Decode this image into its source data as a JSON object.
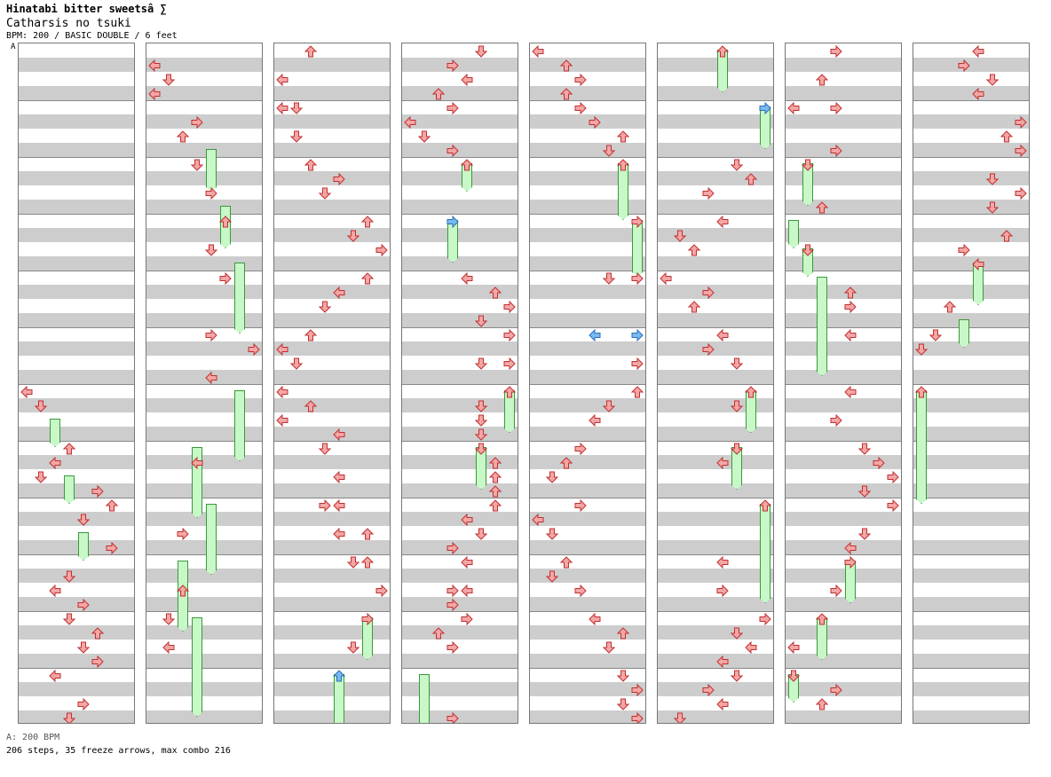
{
  "header": {
    "title": "Hinatabi bitter sweetsâ ∑",
    "subtitle": "Catharsis no tsuki",
    "info": "BPM: 200 / BASIC DOUBLE / 6 feet"
  },
  "bpm_marker": "A",
  "footer": {
    "bpm_line": "A: 200 BPM",
    "stats": "206 steps, 35 freeze arrows, max combo 216"
  },
  "colors": {
    "arrow_red": "#f4a6a6",
    "arrow_blue": "#7ab8f0",
    "freeze_green": "#c8f7c8"
  },
  "chart": {
    "measures_per_column": 12,
    "columns": [
      {
        "arrows": [
          [
            24,
            0,
            "L"
          ],
          [
            25,
            1,
            "D"
          ],
          [
            28,
            3,
            "U"
          ],
          [
            29,
            2,
            "L"
          ],
          [
            30,
            1,
            "D"
          ],
          [
            31,
            5,
            "R"
          ],
          [
            32,
            6,
            "U"
          ],
          [
            33,
            4,
            "D"
          ],
          [
            35,
            6,
            "R"
          ],
          [
            37,
            3,
            "D"
          ],
          [
            38,
            2,
            "L"
          ],
          [
            39,
            4,
            "R"
          ],
          [
            40,
            3,
            "D"
          ],
          [
            41,
            5,
            "U"
          ],
          [
            42,
            4,
            "D"
          ],
          [
            43,
            5,
            "R"
          ],
          [
            44,
            2,
            "L"
          ],
          [
            46,
            4,
            "R"
          ],
          [
            47,
            3,
            "D"
          ]
        ],
        "holds": [
          [
            26,
            2,
            2
          ],
          [
            30,
            3,
            2
          ],
          [
            34,
            4,
            2
          ]
        ]
      },
      {
        "arrows": [
          [
            1,
            0,
            "L"
          ],
          [
            2,
            1,
            "D"
          ],
          [
            3,
            0,
            "L"
          ],
          [
            5,
            3,
            "R"
          ],
          [
            6,
            2,
            "U"
          ],
          [
            8,
            3,
            "D"
          ],
          [
            10,
            4,
            "R"
          ],
          [
            12,
            5,
            "U"
          ],
          [
            14,
            4,
            "D"
          ],
          [
            16,
            5,
            "R"
          ],
          [
            20,
            4,
            "R"
          ],
          [
            21,
            7,
            "R"
          ],
          [
            23,
            4,
            "L"
          ],
          [
            29,
            3,
            "L"
          ],
          [
            34,
            2,
            "R"
          ],
          [
            38,
            2,
            "U"
          ],
          [
            40,
            1,
            "D"
          ],
          [
            42,
            1,
            "L"
          ]
        ],
        "holds": [
          [
            7,
            4,
            3
          ],
          [
            11,
            5,
            3
          ],
          [
            15,
            6,
            5
          ],
          [
            24,
            6,
            5
          ],
          [
            28,
            3,
            5
          ],
          [
            32,
            4,
            5
          ],
          [
            36,
            2,
            5
          ],
          [
            40,
            3,
            7
          ]
        ]
      },
      {
        "arrows": [
          [
            0,
            2,
            "U"
          ],
          [
            2,
            0,
            "L"
          ],
          [
            4,
            0,
            "L"
          ],
          [
            4,
            1,
            "D"
          ],
          [
            6,
            1,
            "D"
          ],
          [
            8,
            2,
            "U"
          ],
          [
            9,
            4,
            "R"
          ],
          [
            10,
            3,
            "D"
          ],
          [
            12,
            6,
            "U"
          ],
          [
            13,
            5,
            "D"
          ],
          [
            14,
            7,
            "R"
          ],
          [
            16,
            6,
            "U"
          ],
          [
            17,
            4,
            "L"
          ],
          [
            18,
            3,
            "D"
          ],
          [
            20,
            2,
            "U"
          ],
          [
            21,
            0,
            "L"
          ],
          [
            22,
            1,
            "D"
          ],
          [
            24,
            0,
            "L"
          ],
          [
            25,
            2,
            "U"
          ],
          [
            26,
            0,
            "L"
          ],
          [
            27,
            4,
            "L"
          ],
          [
            28,
            3,
            "D"
          ],
          [
            30,
            4,
            "L"
          ],
          [
            32,
            3,
            "R"
          ],
          [
            32,
            4,
            "L"
          ],
          [
            34,
            4,
            "L"
          ],
          [
            34,
            6,
            "U"
          ],
          [
            36,
            5,
            "D"
          ],
          [
            36,
            6,
            "U"
          ],
          [
            38,
            7,
            "R"
          ],
          [
            40,
            6,
            "R"
          ],
          [
            42,
            5,
            "D"
          ]
        ],
        "holds": [
          [
            40,
            6,
            3
          ]
        ],
        "blue_arrows": [
          [
            44,
            4,
            "U"
          ]
        ],
        "blue_holds": [
          [
            44,
            4,
            4
          ]
        ]
      },
      {
        "arrows": [
          [
            0,
            5,
            "D"
          ],
          [
            1,
            3,
            "R"
          ],
          [
            2,
            4,
            "L"
          ],
          [
            3,
            2,
            "U"
          ],
          [
            4,
            3,
            "R"
          ],
          [
            5,
            0,
            "L"
          ],
          [
            6,
            1,
            "D"
          ],
          [
            7,
            3,
            "R"
          ],
          [
            8,
            4,
            "U"
          ],
          [
            16,
            4,
            "L"
          ],
          [
            17,
            6,
            "U"
          ],
          [
            18,
            7,
            "R"
          ],
          [
            19,
            5,
            "D"
          ],
          [
            20,
            7,
            "R"
          ],
          [
            22,
            5,
            "D"
          ],
          [
            22,
            7,
            "R"
          ],
          [
            24,
            7,
            "U"
          ],
          [
            25,
            5,
            "D"
          ],
          [
            26,
            5,
            "D"
          ],
          [
            27,
            5,
            "D"
          ],
          [
            28,
            5,
            "D"
          ],
          [
            29,
            6,
            "U"
          ],
          [
            30,
            6,
            "U"
          ],
          [
            31,
            6,
            "U"
          ],
          [
            32,
            6,
            "U"
          ],
          [
            33,
            4,
            "L"
          ],
          [
            34,
            5,
            "D"
          ],
          [
            35,
            3,
            "R"
          ],
          [
            36,
            4,
            "L"
          ],
          [
            38,
            3,
            "R"
          ],
          [
            38,
            4,
            "L"
          ],
          [
            39,
            3,
            "R"
          ],
          [
            40,
            4,
            "R"
          ],
          [
            41,
            2,
            "U"
          ],
          [
            42,
            3,
            "R"
          ],
          [
            47,
            3,
            "R"
          ]
        ],
        "holds": [
          [
            8,
            4,
            2
          ],
          [
            24,
            7,
            3
          ],
          [
            28,
            5,
            3
          ],
          [
            44,
            1,
            4
          ]
        ],
        "blue_arrows": [
          [
            12,
            3,
            "R"
          ]
        ],
        "blue_holds": [
          [
            12,
            3,
            3
          ]
        ]
      },
      {
        "arrows": [
          [
            0,
            0,
            "L"
          ],
          [
            1,
            2,
            "U"
          ],
          [
            2,
            3,
            "R"
          ],
          [
            3,
            2,
            "U"
          ],
          [
            4,
            3,
            "R"
          ],
          [
            5,
            4,
            "R"
          ],
          [
            6,
            6,
            "U"
          ],
          [
            7,
            5,
            "D"
          ],
          [
            8,
            6,
            "U"
          ],
          [
            12,
            7,
            "R"
          ],
          [
            16,
            5,
            "D"
          ],
          [
            16,
            7,
            "R"
          ],
          [
            22,
            7,
            "R"
          ],
          [
            24,
            7,
            "U"
          ],
          [
            25,
            5,
            "D"
          ],
          [
            26,
            4,
            "L"
          ],
          [
            28,
            3,
            "R"
          ],
          [
            29,
            2,
            "U"
          ],
          [
            30,
            1,
            "D"
          ],
          [
            32,
            3,
            "R"
          ],
          [
            33,
            0,
            "L"
          ],
          [
            34,
            1,
            "D"
          ],
          [
            36,
            2,
            "U"
          ],
          [
            37,
            1,
            "D"
          ],
          [
            38,
            3,
            "R"
          ],
          [
            40,
            4,
            "L"
          ],
          [
            41,
            6,
            "U"
          ],
          [
            42,
            5,
            "D"
          ],
          [
            44,
            6,
            "D"
          ],
          [
            45,
            7,
            "R"
          ],
          [
            46,
            6,
            "D"
          ],
          [
            47,
            7,
            "R"
          ]
        ],
        "holds": [
          [
            8,
            6,
            4
          ],
          [
            12,
            7,
            4
          ]
        ],
        "blue_arrows": [
          [
            20,
            4,
            "L"
          ],
          [
            20,
            7,
            "R"
          ]
        ]
      },
      {
        "arrows": [
          [
            0,
            4,
            "U"
          ],
          [
            8,
            5,
            "D"
          ],
          [
            9,
            6,
            "U"
          ],
          [
            10,
            3,
            "R"
          ],
          [
            12,
            4,
            "L"
          ],
          [
            13,
            1,
            "D"
          ],
          [
            14,
            2,
            "U"
          ],
          [
            16,
            0,
            "L"
          ],
          [
            17,
            3,
            "R"
          ],
          [
            18,
            2,
            "U"
          ],
          [
            20,
            4,
            "L"
          ],
          [
            21,
            3,
            "R"
          ],
          [
            22,
            5,
            "D"
          ],
          [
            24,
            6,
            "U"
          ],
          [
            25,
            5,
            "D"
          ],
          [
            28,
            5,
            "D"
          ],
          [
            29,
            4,
            "L"
          ],
          [
            32,
            7,
            "U"
          ],
          [
            36,
            4,
            "L"
          ],
          [
            38,
            4,
            "R"
          ],
          [
            40,
            7,
            "R"
          ],
          [
            41,
            5,
            "D"
          ],
          [
            42,
            6,
            "L"
          ],
          [
            43,
            4,
            "L"
          ],
          [
            44,
            5,
            "D"
          ],
          [
            45,
            3,
            "R"
          ],
          [
            46,
            4,
            "L"
          ],
          [
            47,
            1,
            "D"
          ]
        ],
        "holds": [
          [
            0,
            4,
            3
          ],
          [
            4,
            7,
            3
          ],
          [
            24,
            6,
            3
          ],
          [
            28,
            5,
            3
          ],
          [
            32,
            7,
            7
          ]
        ],
        "blue_arrows": [
          [
            4,
            7,
            "R"
          ]
        ]
      },
      {
        "arrows": [
          [
            0,
            3,
            "R"
          ],
          [
            2,
            2,
            "U"
          ],
          [
            4,
            0,
            "L"
          ],
          [
            4,
            3,
            "R"
          ],
          [
            7,
            3,
            "R"
          ],
          [
            8,
            1,
            "D"
          ],
          [
            11,
            2,
            "U"
          ],
          [
            14,
            1,
            "D"
          ],
          [
            17,
            4,
            "U"
          ],
          [
            18,
            4,
            "R"
          ],
          [
            20,
            4,
            "L"
          ],
          [
            24,
            4,
            "L"
          ],
          [
            26,
            3,
            "R"
          ],
          [
            28,
            5,
            "D"
          ],
          [
            29,
            6,
            "R"
          ],
          [
            30,
            7,
            "R"
          ],
          [
            31,
            5,
            "D"
          ],
          [
            32,
            7,
            "R"
          ],
          [
            34,
            5,
            "D"
          ],
          [
            35,
            4,
            "L"
          ],
          [
            36,
            4,
            "R"
          ],
          [
            38,
            3,
            "R"
          ],
          [
            40,
            2,
            "U"
          ],
          [
            42,
            0,
            "L"
          ],
          [
            44,
            0,
            "D"
          ],
          [
            45,
            3,
            "R"
          ],
          [
            46,
            2,
            "U"
          ]
        ],
        "holds": [
          [
            8,
            1,
            3
          ],
          [
            12,
            0,
            2
          ],
          [
            14,
            1,
            2
          ],
          [
            16,
            2,
            7
          ],
          [
            36,
            4,
            3
          ],
          [
            40,
            2,
            3
          ],
          [
            44,
            0,
            2
          ]
        ]
      },
      {
        "arrows": [
          [
            0,
            4,
            "L"
          ],
          [
            1,
            3,
            "R"
          ],
          [
            2,
            5,
            "D"
          ],
          [
            3,
            4,
            "L"
          ],
          [
            5,
            7,
            "R"
          ],
          [
            6,
            6,
            "U"
          ],
          [
            7,
            7,
            "R"
          ],
          [
            9,
            5,
            "D"
          ],
          [
            10,
            7,
            "R"
          ],
          [
            11,
            5,
            "D"
          ],
          [
            13,
            6,
            "U"
          ],
          [
            14,
            3,
            "R"
          ],
          [
            15,
            4,
            "L"
          ],
          [
            18,
            2,
            "U"
          ],
          [
            20,
            1,
            "D"
          ],
          [
            21,
            0,
            "D"
          ],
          [
            24,
            0,
            "U"
          ]
        ],
        "holds": [
          [
            15,
            4,
            3
          ],
          [
            19,
            3,
            2
          ],
          [
            24,
            0,
            8
          ]
        ]
      }
    ]
  }
}
